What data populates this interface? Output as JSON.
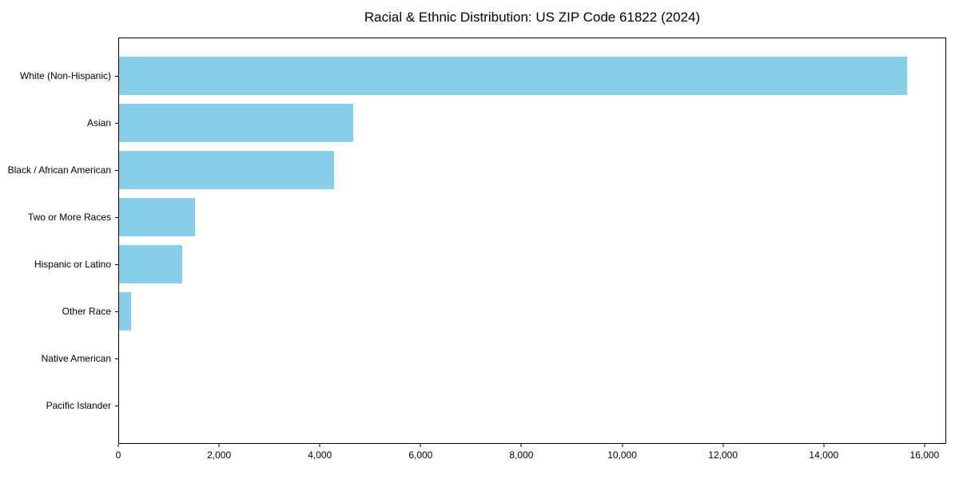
{
  "chart_data": {
    "type": "bar",
    "orientation": "horizontal",
    "title": "Racial & Ethnic Distribution: US ZIP Code 61822 (2024)",
    "categories": [
      "White (Non-Hispanic)",
      "Asian",
      "Black / African American",
      "Two or More Races",
      "Hispanic or Latino",
      "Other Race",
      "Native American",
      "Pacific Islander"
    ],
    "values": [
      15670,
      4650,
      4280,
      1505,
      1250,
      240,
      0,
      0
    ],
    "xlabel": "",
    "ylabel": "",
    "xlim": [
      0,
      16430
    ],
    "x_ticks": [
      0,
      2000,
      4000,
      6000,
      8000,
      10000,
      12000,
      14000,
      16000
    ],
    "x_tick_labels": [
      "0",
      "2,000",
      "4,000",
      "6,000",
      "8,000",
      "10,000",
      "12,000",
      "14,000",
      "16,000"
    ],
    "bar_color": "#87CEEB",
    "background_color": "#ffffff",
    "spine_color": "#000000",
    "grid": false,
    "legend": null
  }
}
